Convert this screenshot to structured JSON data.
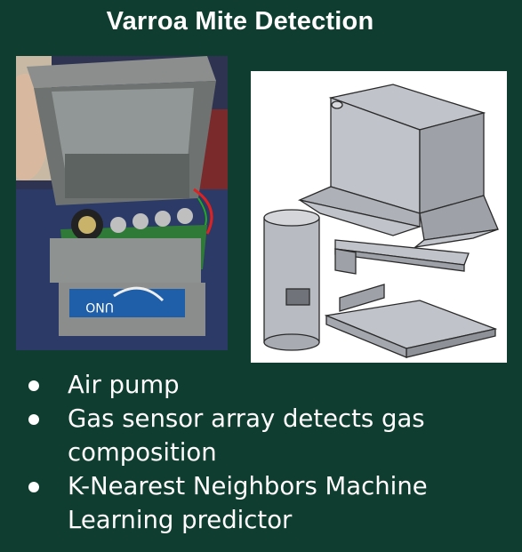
{
  "slide": {
    "title": "Varroa Mite Detection",
    "bullets": [
      "Air pump",
      "Gas sensor array detects gas composition",
      "K-Nearest Neighbors Machine Learning predictor"
    ]
  },
  "photo": {
    "board_label": "UNO"
  }
}
